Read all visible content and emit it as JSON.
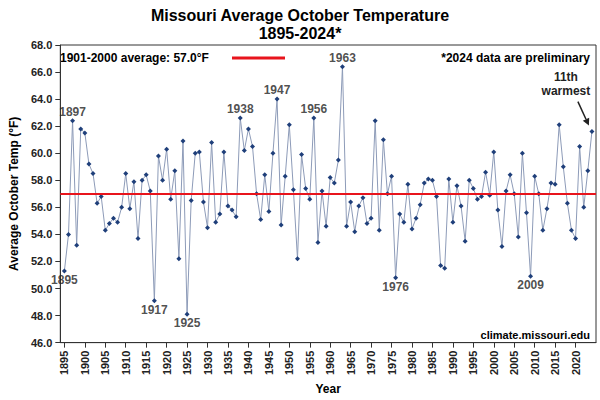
{
  "chart_data": {
    "type": "line",
    "title": "Missouri Average October Temperature",
    "subtitle": "1895-2024*",
    "x_label": "Year",
    "y_label": "Average October Temp (°F)",
    "color": "#1f3f7a",
    "marker": "diamond",
    "grid": false,
    "x": [
      1895,
      1896,
      1897,
      1898,
      1899,
      1900,
      1901,
      1902,
      1903,
      1904,
      1905,
      1906,
      1907,
      1908,
      1909,
      1910,
      1911,
      1912,
      1913,
      1914,
      1915,
      1916,
      1917,
      1918,
      1919,
      1920,
      1921,
      1922,
      1923,
      1924,
      1925,
      1926,
      1927,
      1928,
      1929,
      1930,
      1931,
      1932,
      1933,
      1934,
      1935,
      1936,
      1937,
      1938,
      1939,
      1940,
      1941,
      1942,
      1943,
      1944,
      1945,
      1946,
      1947,
      1948,
      1949,
      1950,
      1951,
      1952,
      1953,
      1954,
      1955,
      1956,
      1957,
      1958,
      1959,
      1960,
      1961,
      1962,
      1963,
      1964,
      1965,
      1966,
      1967,
      1968,
      1969,
      1970,
      1971,
      1972,
      1973,
      1974,
      1975,
      1976,
      1977,
      1978,
      1979,
      1980,
      1981,
      1982,
      1983,
      1984,
      1985,
      1986,
      1987,
      1988,
      1989,
      1990,
      1991,
      1992,
      1993,
      1994,
      1995,
      1996,
      1997,
      1998,
      1999,
      2000,
      2001,
      2002,
      2003,
      2004,
      2005,
      2006,
      2007,
      2008,
      2009,
      2010,
      2011,
      2012,
      2013,
      2014,
      2015,
      2016,
      2017,
      2018,
      2019,
      2020,
      2021,
      2022,
      2023,
      2024
    ],
    "values": [
      51.3,
      54.0,
      62.4,
      53.2,
      61.8,
      61.5,
      59.2,
      58.5,
      56.3,
      56.8,
      54.3,
      54.8,
      55.2,
      54.9,
      56.0,
      58.5,
      55.9,
      57.9,
      53.7,
      58.0,
      58.4,
      57.2,
      49.1,
      59.8,
      58.0,
      60.3,
      56.6,
      58.7,
      52.2,
      60.9,
      48.1,
      56.5,
      60.0,
      60.1,
      56.4,
      54.5,
      60.8,
      54.9,
      55.5,
      60.1,
      56.1,
      55.8,
      55.3,
      62.6,
      60.2,
      61.8,
      60.5,
      57.0,
      55.1,
      58.4,
      55.7,
      60.0,
      64.0,
      54.7,
      58.3,
      62.1,
      57.3,
      52.2,
      59.9,
      57.4,
      56.6,
      62.6,
      53.4,
      57.2,
      54.6,
      58.2,
      57.8,
      59.5,
      66.4,
      54.6,
      56.4,
      54.2,
      56.1,
      56.7,
      54.8,
      55.2,
      62.4,
      54.3,
      61.0,
      57.0,
      58.3,
      50.8,
      55.5,
      54.9,
      57.7,
      54.4,
      55.2,
      56.2,
      57.8,
      58.1,
      58.0,
      56.8,
      51.7,
      51.5,
      58.1,
      54.9,
      57.6,
      56.1,
      53.5,
      58.0,
      57.4,
      56.6,
      56.8,
      58.6,
      56.9,
      60.1,
      55.8,
      53.1,
      57.2,
      58.4,
      57.0,
      53.8,
      60.0,
      55.6,
      50.9,
      58.3,
      57.0,
      54.3,
      55.9,
      57.8,
      57.7,
      62.1,
      59.0,
      56.3,
      54.3,
      53.7,
      60.5,
      56.0,
      58.7,
      61.6
    ],
    "xlim": [
      1894,
      2025
    ],
    "xticks": [
      1895,
      1900,
      1905,
      1910,
      1915,
      1920,
      1925,
      1930,
      1935,
      1940,
      1945,
      1950,
      1955,
      1960,
      1965,
      1970,
      1975,
      1980,
      1985,
      1990,
      1995,
      2000,
      2005,
      2010,
      2015,
      2020
    ],
    "ylim": [
      46,
      68
    ],
    "yticks": [
      {
        "value": 46,
        "label": "46.0"
      },
      {
        "value": 48,
        "label": "48.0"
      },
      {
        "value": 50,
        "label": "50.0"
      },
      {
        "value": 52,
        "label": "52.0"
      },
      {
        "value": 54,
        "label": "54.0"
      },
      {
        "value": 56,
        "label": "56.0"
      },
      {
        "value": 58,
        "label": "58.0"
      },
      {
        "value": 60,
        "label": "60.0"
      },
      {
        "value": 62,
        "label": "62.0"
      },
      {
        "value": 64,
        "label": "64.0"
      },
      {
        "value": 66,
        "label": "66.0"
      },
      {
        "value": 68,
        "label": "68.0"
      }
    ],
    "reference": {
      "value": 57.0,
      "label": "1901-2000 average: 57.0°F",
      "color": "#e8141c"
    },
    "annotations": [
      {
        "text": "1895",
        "x": 1895
      },
      {
        "text": "1897",
        "x": 1897
      },
      {
        "text": "1917",
        "x": 1917
      },
      {
        "text": "1925",
        "x": 1925
      },
      {
        "text": "1938",
        "x": 1938
      },
      {
        "text": "1947",
        "x": 1947
      },
      {
        "text": "1956",
        "x": 1956
      },
      {
        "text": "1963",
        "x": 1963
      },
      {
        "text": "1976",
        "x": 1976
      },
      {
        "text": "2009",
        "x": 2009
      },
      {
        "text": "11th\nwarmest",
        "x": 2024,
        "marker": "arrow"
      }
    ],
    "notes": [
      "*2024 data are preliminary",
      "climate.missouri.edu"
    ]
  }
}
